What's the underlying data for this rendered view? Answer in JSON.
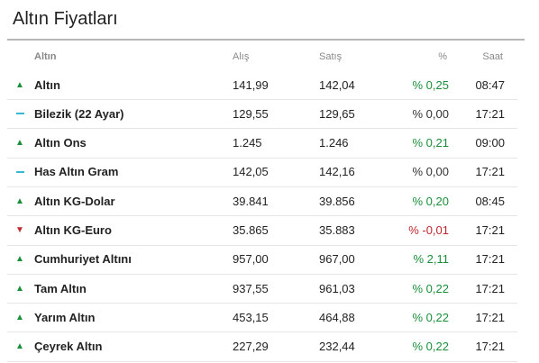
{
  "title": "Altın Fiyatları",
  "columns": {
    "name": "Altın",
    "alis": "Alış",
    "satis": "Satış",
    "pct": "%",
    "saat": "Saat"
  },
  "rows": [
    {
      "name": "Altın",
      "alis": "141,99",
      "satis": "142,04",
      "pct": "% 0,25",
      "saat": "08:47",
      "trend": "up"
    },
    {
      "name": "Bilezik (22 Ayar)",
      "alis": "129,55",
      "satis": "129,65",
      "pct": "% 0,00",
      "saat": "17:21",
      "trend": "flat"
    },
    {
      "name": "Altın Ons",
      "alis": "1.245",
      "satis": "1.246",
      "pct": "% 0,21",
      "saat": "09:00",
      "trend": "up"
    },
    {
      "name": "Has Altın Gram",
      "alis": "142,05",
      "satis": "142,16",
      "pct": "% 0,00",
      "saat": "17:21",
      "trend": "flat"
    },
    {
      "name": "Altın KG-Dolar",
      "alis": "39.841",
      "satis": "39.856",
      "pct": "% 0,20",
      "saat": "08:45",
      "trend": "up"
    },
    {
      "name": "Altın KG-Euro",
      "alis": "35.865",
      "satis": "35.883",
      "pct": "% -0,01",
      "saat": "17:21",
      "trend": "down"
    },
    {
      "name": "Cumhuriyet Altını",
      "alis": "957,00",
      "satis": "967,00",
      "pct": "% 2,11",
      "saat": "17:21",
      "trend": "up"
    },
    {
      "name": "Tam Altın",
      "alis": "937,55",
      "satis": "961,03",
      "pct": "% 0,22",
      "saat": "17:21",
      "trend": "up"
    },
    {
      "name": "Yarım Altın",
      "alis": "453,15",
      "satis": "464,88",
      "pct": "% 0,22",
      "saat": "17:21",
      "trend": "up"
    },
    {
      "name": "Çeyrek Altın",
      "alis": "227,29",
      "satis": "232,44",
      "pct": "% 0,22",
      "saat": "17:21",
      "trend": "up"
    }
  ],
  "icons": {
    "up": "arrow-up-icon",
    "down": "arrow-down-icon",
    "flat": "dash-icon"
  },
  "colors": {
    "up": "#1a8f3a",
    "down": "#c1272d",
    "flat": "#3bb7d4"
  }
}
